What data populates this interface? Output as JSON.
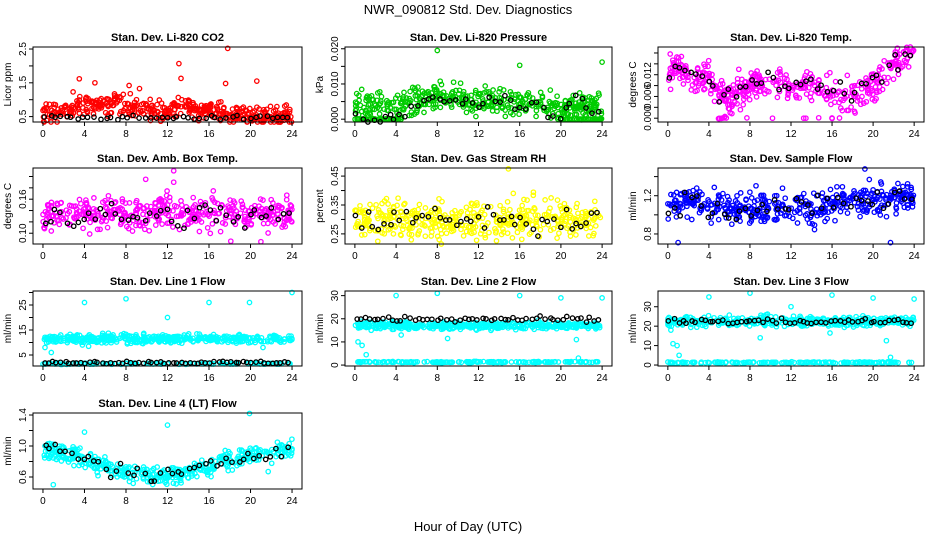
{
  "chart_data": {
    "type": "scatter",
    "title": "NWR_090812  Std. Dev. Diagnostics",
    "xlabel": "Hour of Day (UTC)",
    "xlim": [
      0,
      24
    ],
    "xticks": [
      0,
      4,
      8,
      12,
      16,
      20,
      24
    ],
    "panels": [
      {
        "title": "Stan. Dev. Li-820 CO2",
        "ylabel": "Licor ppm",
        "color": "#ff0000",
        "ylim": [
          0.34,
          2.56
        ],
        "yticks": [
          0.5,
          1.0,
          1.5,
          2.0,
          2.5
        ],
        "ytick_labels": [
          "0.5",
          "",
          "1.5",
          "",
          "2.5"
        ],
        "main": {
          "trend": [
            0.6,
            0.65,
            0.7,
            0.75,
            0.8,
            0.85,
            0.85,
            0.85,
            0.8,
            0.75,
            0.7,
            0.65,
            0.6,
            0.8,
            0.85,
            0.7,
            0.65,
            0.65,
            0.6,
            0.6,
            0.55,
            0.55,
            0.55,
            0.5,
            0.5
          ],
          "spread": 0.15,
          "n": 420
        },
        "outliers": [
          [
            3.5,
            1.62
          ],
          [
            5,
            1.5
          ],
          [
            13.1,
            2.07
          ],
          [
            13.3,
            1.63
          ],
          [
            17.8,
            2.52
          ],
          [
            17.6,
            1.48
          ],
          [
            20.6,
            1.55
          ],
          [
            2.9,
            1.23
          ],
          [
            9.3,
            1.33
          ],
          [
            8.3,
            1.42
          ]
        ],
        "ref": {
          "trend": [
            0.47
          ],
          "spread": 0.03,
          "n": 45
        }
      },
      {
        "title": "Stan. Dev. Li-820 Pressure",
        "ylabel": "kPa",
        "color": "#00cc00",
        "ylim": [
          -0.0008,
          0.0205
        ],
        "yticks": [
          0,
          0.005,
          0.01,
          0.015,
          0.02
        ],
        "ytick_labels": [
          "0.000",
          "",
          "0.010",
          "",
          "0.020"
        ],
        "main": {
          "trend": [
            0.004,
            0.004,
            0.004,
            0.004,
            0.003,
            0.004,
            0.005,
            0.006,
            0.007,
            0.006,
            0.006,
            0.005,
            0.005,
            0.005,
            0.005,
            0.004,
            0.005,
            0.005,
            0.005,
            0.004,
            0.003,
            0.004,
            0.004,
            0.004,
            0.004
          ],
          "spread": 0.0018,
          "n": 420
        },
        "floor": {
          "value": 0,
          "ranges": [
            [
              0,
              4.5
            ],
            [
              19.5,
              24
            ]
          ],
          "n": 90
        },
        "outliers": [
          [
            8,
            0.0195
          ],
          [
            16,
            0.0153
          ],
          [
            24,
            0.0162
          ]
        ],
        "ref": {
          "trend": [
            0,
            0,
            0,
            0,
            0.0005,
            0.002,
            0.004,
            0.006,
            0.0065,
            0.0057,
            0.005,
            0.006,
            0.004,
            0.006,
            0.005,
            0.006,
            0.002,
            0.004,
            0.004,
            0.001,
            0,
            0.006,
            0.006,
            0.002,
            0.003
          ],
          "spread": 0.0008,
          "n": 45
        }
      },
      {
        "title": "Stan. Dev. Li-820 Temp.",
        "ylabel": "degrees C",
        "color": "#ff00ff",
        "ylim": [
          -0.0007,
          0.0131
        ],
        "yticks": [
          0,
          0.002,
          0.004,
          0.006,
          0.008,
          0.01,
          0.012
        ],
        "ytick_labels": [
          "0.000",
          "",
          "0.006",
          "",
          "0.012"
        ],
        "main": {
          "trend": [
            0.0085,
            0.009,
            0.008,
            0.0075,
            0.007,
            0.004,
            0.004,
            0.005,
            0.006,
            0.007,
            0.007,
            0.006,
            0.006,
            0.0065,
            0.006,
            0.005,
            0.005,
            0.004,
            0.004,
            0.005,
            0.006,
            0.008,
            0.01,
            0.011,
            0.012
          ],
          "spread": 0.0014,
          "n": 420
        },
        "floor": {
          "value": 0,
          "ranges": [
            [
              4.8,
              5.8
            ],
            [
              7,
              18
            ]
          ],
          "n": 16
        },
        "outliers": [],
        "ref": {
          "trend": [
            0.0085,
            0.009,
            0.008,
            0.0075,
            0.007,
            0.004,
            0.004,
            0.005,
            0.006,
            0.007,
            0.007,
            0.006,
            0.006,
            0.0065,
            0.006,
            0.005,
            0.005,
            0.004,
            0.004,
            0.005,
            0.006,
            0.008,
            0.01,
            0.011,
            0.012
          ],
          "spread": 0.001,
          "n": 45
        }
      },
      {
        "title": "Stan. Dev. Amb. Box Temp.",
        "ylabel": "degrees C",
        "color": "#ff00ff",
        "ylim": [
          0.081,
          0.215
        ],
        "yticks": [
          0.1,
          0.12,
          0.14,
          0.16,
          0.18,
          0.2
        ],
        "ytick_labels": [
          "0.10",
          "",
          "",
          "0.16",
          "",
          ""
        ],
        "main": {
          "trend": [
            0.135
          ],
          "spread": 0.014,
          "n": 420
        },
        "outliers": [
          [
            9.9,
            0.195
          ],
          [
            12.6,
            0.21
          ],
          [
            12.6,
            0.19
          ],
          [
            18.1,
            0.086
          ],
          [
            21,
            0.085
          ],
          [
            0.8,
            0.104
          ]
        ],
        "ref": {
          "trend": [
            0.13
          ],
          "spread": 0.011,
          "n": 45
        }
      },
      {
        "title": "Stan. Dev. Gas Stream RH",
        "ylabel": "percent",
        "color": "#ffff00",
        "ylim": [
          0.215,
          0.478
        ],
        "yticks": [
          0.25,
          0.3,
          0.35,
          0.4,
          0.45
        ],
        "ytick_labels": [
          "0.25",
          "",
          "0.35",
          "",
          "0.45"
        ],
        "main": {
          "trend": [
            0.3
          ],
          "spread": 0.033,
          "n": 420
        },
        "outliers": [
          [
            14.9,
            0.475
          ],
          [
            17.9,
            0.24
          ]
        ],
        "ref": {
          "trend": [
            0.3
          ],
          "spread": 0.03,
          "n": 45
        }
      },
      {
        "title": "Stan. Dev. Sample Flow",
        "ylabel": "ml/min",
        "color": "#0000ff",
        "ylim": [
          0.695,
          1.49
        ],
        "yticks": [
          0.8,
          1.0,
          1.2,
          1.4
        ],
        "ytick_labels": [
          "0.8",
          "",
          "1.2",
          ""
        ],
        "main": {
          "trend": [
            1.12,
            1.12,
            1.12,
            1.12,
            1.1,
            1.08,
            1.06,
            1.06,
            1.06,
            1.07,
            1.08,
            1.08,
            1.08,
            1.05,
            1.05,
            1.08,
            1.12,
            1.15,
            1.15,
            1.16,
            1.15,
            1.16,
            1.18,
            1.2,
            1.2
          ],
          "spread": 0.08,
          "n": 420
        },
        "outliers": [
          [
            1,
            0.71
          ],
          [
            21.7,
            0.71
          ],
          [
            19.2,
            1.48
          ]
        ],
        "ref": {
          "trend": [
            1.12,
            1.12,
            1.12,
            1.12,
            1.1,
            1.08,
            1.06,
            1.06,
            1.06,
            1.07,
            1.08,
            1.08,
            1.08,
            1.05,
            1.05,
            1.08,
            1.12,
            1.15,
            1.15,
            1.16,
            1.15,
            1.16,
            1.18,
            1.2,
            1.2
          ],
          "spread": 0.06,
          "n": 45
        }
      },
      {
        "title": "Stan. Dev. Line 1 Flow",
        "ylabel": "ml/min",
        "color": "#00ffff",
        "ylim": [
          0.6,
          30.6
        ],
        "yticks": [
          5,
          10,
          15,
          20,
          25,
          30
        ],
        "ytick_labels": [
          "5",
          "",
          "15",
          "",
          "25",
          ""
        ],
        "main": {
          "trend": [
            11.5
          ],
          "spread": 0.9,
          "n": 420
        },
        "floor": {
          "value": 1.5,
          "ranges": [
            [
              0,
              24
            ]
          ],
          "n": 120
        },
        "outliers": [
          [
            4,
            26
          ],
          [
            8,
            27.5
          ],
          [
            12,
            20
          ],
          [
            16,
            26
          ],
          [
            19.9,
            26
          ],
          [
            24,
            30
          ],
          [
            0.2,
            8
          ],
          [
            0.8,
            6
          ],
          [
            4.4,
            8.5
          ],
          [
            21.2,
            8
          ]
        ],
        "ref": {
          "trend": [
            2
          ],
          "spread": 0.25,
          "n": 60
        }
      },
      {
        "title": "Stan. Dev. Line 2 Flow",
        "ylabel": "ml/min",
        "color": "#00ffff",
        "ylim": [
          -0.4,
          32
        ],
        "yticks": [
          0,
          10,
          20,
          30
        ],
        "ytick_labels": [
          "0",
          "10",
          "20",
          "30"
        ],
        "main": {
          "trend": [
            17
          ],
          "spread": 0.8,
          "n": 420
        },
        "floor": {
          "value": 1.3,
          "ranges": [
            [
              0,
              24
            ]
          ],
          "n": 160
        },
        "outliers": [
          [
            4,
            30
          ],
          [
            8,
            31
          ],
          [
            16,
            30
          ],
          [
            20,
            29
          ],
          [
            24,
            29
          ],
          [
            0.3,
            10
          ],
          [
            0.7,
            8.5
          ],
          [
            1.1,
            4.5
          ],
          [
            4.5,
            13
          ],
          [
            9,
            11.5
          ],
          [
            21.5,
            11
          ],
          [
            21.7,
            3
          ]
        ],
        "ref": {
          "trend": [
            20
          ],
          "spread": 0.6,
          "n": 55
        }
      },
      {
        "title": "Stan. Dev. Line 3 Flow",
        "ylabel": "ml/min",
        "color": "#00ffff",
        "ylim": [
          -0.5,
          38.1
        ],
        "yticks": [
          0,
          10,
          20,
          30
        ],
        "ytick_labels": [
          "0",
          "10",
          "20",
          "30"
        ],
        "main": {
          "trend": [
            22.5
          ],
          "spread": 1.3,
          "n": 420
        },
        "floor": {
          "value": 1.3,
          "ranges": [
            [
              0,
              24
            ]
          ],
          "n": 160
        },
        "outliers": [
          [
            4,
            35
          ],
          [
            8,
            37
          ],
          [
            12,
            30
          ],
          [
            16,
            36
          ],
          [
            20,
            34.5
          ],
          [
            24,
            34
          ],
          [
            0.5,
            11
          ],
          [
            0.9,
            10
          ],
          [
            1.1,
            5
          ],
          [
            9,
            14
          ],
          [
            21.3,
            12.5
          ],
          [
            21.7,
            4
          ],
          [
            0.3,
            18
          ],
          [
            15.8,
            16.5
          ]
        ],
        "ref": {
          "trend": [
            22.5
          ],
          "spread": 0.7,
          "n": 55
        }
      },
      {
        "title": "Stan. Dev. Line 4 (LT) Flow",
        "ylabel": "ml/min",
        "color": "#00ffff",
        "ylim": [
          0.445,
          1.426
        ],
        "yticks": [
          0.6,
          0.8,
          1.0,
          1.2,
          1.4
        ],
        "ytick_labels": [
          "0.6",
          "",
          "1.0",
          "",
          "1.4"
        ],
        "main": {
          "trend": [
            0.95,
            0.92,
            0.9,
            0.86,
            0.82,
            0.78,
            0.74,
            0.7,
            0.66,
            0.64,
            0.63,
            0.63,
            0.64,
            0.64,
            0.65,
            0.68,
            0.72,
            0.78,
            0.82,
            0.86,
            0.88,
            0.9,
            0.92,
            0.94,
            0.96
          ],
          "spread": 0.06,
          "n": 420
        },
        "outliers": [
          [
            1,
            0.5
          ],
          [
            12,
            1.27
          ],
          [
            19.9,
            1.42
          ],
          [
            4,
            1.18
          ],
          [
            21.7,
            0.67
          ]
        ],
        "ref": {
          "trend": [
            0.95,
            0.92,
            0.9,
            0.86,
            0.82,
            0.78,
            0.74,
            0.7,
            0.66,
            0.64,
            0.63,
            0.63,
            0.64,
            0.64,
            0.65,
            0.68,
            0.72,
            0.78,
            0.82,
            0.86,
            0.88,
            0.9,
            0.92,
            0.94,
            0.96
          ],
          "spread": 0.05,
          "n": 45
        }
      }
    ]
  }
}
